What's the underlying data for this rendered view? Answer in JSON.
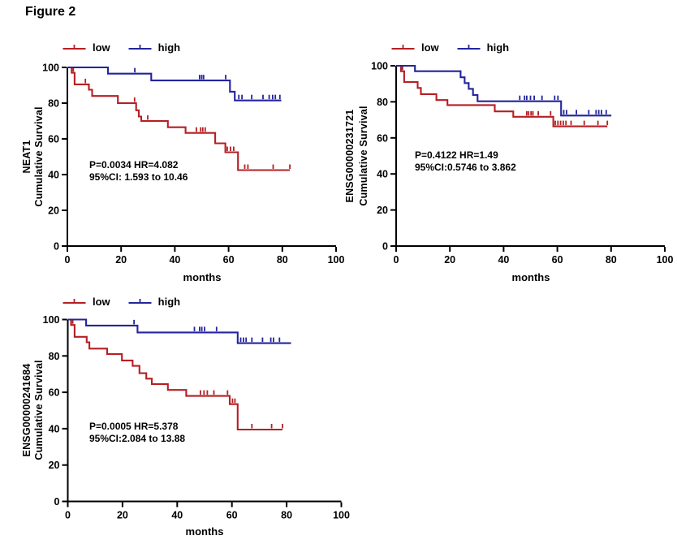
{
  "figure_title": "Figure 2",
  "colors": {
    "low": "#b51f24",
    "high": "#24249c",
    "axis": "#000000"
  },
  "panels": [
    {
      "gene": "NEAT1",
      "ylabel": "Cumulative Survival",
      "xlabel": "months",
      "legend": [
        {
          "label": "low"
        },
        {
          "label": "high"
        }
      ],
      "annotation_line1": "P=0.0034 HR=4.082",
      "annotation_line2": "95%CI: 1.593 to 10.46"
    },
    {
      "gene": "ENSG00000231721",
      "ylabel": "Cumulative Survival",
      "xlabel": "months",
      "legend": [
        {
          "label": "low"
        },
        {
          "label": "high"
        }
      ],
      "annotation_line1": "P=0.4122 HR=1.49",
      "annotation_line2": "95%CI:0.5746 to 3.862"
    },
    {
      "gene": "ENSG00000241684",
      "ylabel": "Cumulative Survival",
      "xlabel": "months",
      "legend": [
        {
          "label": "low"
        },
        {
          "label": "high"
        }
      ],
      "annotation_line1": "P=0.0005 HR=5.378",
      "annotation_line2": "95%CI:2.084 to 13.88"
    }
  ],
  "chart_data": [
    {
      "type": "line",
      "subtype": "kaplan-meier-step",
      "title": "NEAT1",
      "xlabel": "months",
      "ylabel": "Cumulative Survival",
      "x_range": [
        0,
        100
      ],
      "y_range": [
        0,
        100
      ],
      "x_ticks": [
        0,
        20,
        40,
        60,
        80,
        100
      ],
      "y_ticks": [
        0,
        20,
        40,
        60,
        80,
        100
      ],
      "series": [
        {
          "name": "low",
          "color_key": "low",
          "start": [
            0,
            100
          ],
          "steps": [
            [
              1.6,
              97
            ],
            [
              2.7,
              90.5
            ],
            [
              8,
              87.5
            ],
            [
              9.2,
              84
            ],
            [
              18.8,
              80
            ],
            [
              25.6,
              76
            ],
            [
              26.6,
              72.5
            ],
            [
              27.5,
              70
            ],
            [
              37.4,
              66.5
            ],
            [
              44,
              63.3
            ],
            [
              55,
              57.5
            ],
            [
              58.8,
              52.5
            ],
            [
              63.5,
              42.5
            ]
          ],
          "end_x": 82.8,
          "censor_x": [
            2.2,
            6.7,
            25,
            29.9,
            48,
            49.6,
            50.4,
            51.3,
            59.5,
            60.7,
            61.9,
            66,
            67.2,
            76.6,
            82.8
          ]
        },
        {
          "name": "high",
          "color_key": "high",
          "start": [
            0,
            100
          ],
          "steps": [
            [
              15.1,
              96.5
            ],
            [
              31.2,
              92.7
            ],
            [
              60.5,
              86.4
            ],
            [
              62.3,
              81.5
            ]
          ],
          "end_x": 79.6,
          "censor_x": [
            25.1,
            49.2,
            50,
            50.7,
            58.9,
            63.8,
            65,
            68.6,
            72.8,
            75.1,
            76.4,
            77.4,
            79.1
          ]
        }
      ]
    },
    {
      "type": "line",
      "subtype": "kaplan-meier-step",
      "title": "ENSG00000231721",
      "xlabel": "months",
      "ylabel": "Cumulative Survival",
      "x_range": [
        0,
        100
      ],
      "y_range": [
        0,
        100
      ],
      "x_ticks": [
        0,
        20,
        40,
        60,
        80,
        100
      ],
      "y_ticks": [
        0,
        20,
        40,
        60,
        80,
        100
      ],
      "series": [
        {
          "name": "low",
          "color_key": "low",
          "start": [
            0,
            100
          ],
          "steps": [
            [
              1.8,
              97
            ],
            [
              3,
              91
            ],
            [
              8,
              87.7
            ],
            [
              9.2,
              84.3
            ],
            [
              15,
              81
            ],
            [
              19.1,
              78.2
            ],
            [
              36.7,
              74.7
            ],
            [
              43.6,
              71.7
            ],
            [
              58.5,
              66.4
            ]
          ],
          "end_x": 78.6,
          "censor_x": [
            2.4,
            48.6,
            49.3,
            50.2,
            50.9,
            52.9,
            57.5,
            59.2,
            60.2,
            61.2,
            62.2,
            63.2,
            65.1,
            70,
            75.1,
            78.6
          ]
        },
        {
          "name": "high",
          "color_key": "high",
          "start": [
            0,
            100
          ],
          "steps": [
            [
              7,
              97
            ],
            [
              24,
              93.6
            ],
            [
              25.5,
              90.4
            ],
            [
              27,
              87.2
            ],
            [
              28.6,
              83.8
            ],
            [
              30.3,
              80.3
            ],
            [
              61.4,
              72.4
            ]
          ],
          "end_x": 80.1,
          "censor_x": [
            46,
            47.8,
            48.6,
            50,
            51.4,
            54.3,
            59,
            60.2,
            62.4,
            63.4,
            67.1,
            71.7,
            74.4,
            75.4,
            76.4,
            78.2
          ]
        }
      ]
    },
    {
      "type": "line",
      "subtype": "kaplan-meier-step",
      "title": "ENSG00000241684",
      "xlabel": "months",
      "ylabel": "Cumulative Survival",
      "x_range": [
        0,
        100
      ],
      "y_range": [
        0,
        100
      ],
      "x_ticks": [
        0,
        20,
        40,
        60,
        80,
        100
      ],
      "y_ticks": [
        0,
        20,
        40,
        60,
        80,
        100
      ],
      "series": [
        {
          "name": "low",
          "color_key": "low",
          "start": [
            0,
            100
          ],
          "steps": [
            [
              1.2,
              97
            ],
            [
              2.5,
              90.5
            ],
            [
              6.9,
              87.5
            ],
            [
              7.9,
              84
            ],
            [
              14.4,
              81
            ],
            [
              19.8,
              77.5
            ],
            [
              23.7,
              74.5
            ],
            [
              26.2,
              70.5
            ],
            [
              28.7,
              67.5
            ],
            [
              30.7,
              64.5
            ],
            [
              36.6,
              61.3
            ],
            [
              43.3,
              58
            ],
            [
              59.2,
              53.5
            ],
            [
              62.1,
              39.5
            ]
          ],
          "end_x": 78.5,
          "censor_x": [
            1.8,
            48.5,
            49.8,
            51,
            53.4,
            58.4,
            60.2,
            61.1,
            67.3,
            74.5,
            78.5
          ]
        },
        {
          "name": "high",
          "color_key": "high",
          "start": [
            0,
            100
          ],
          "steps": [
            [
              6.7,
              96.7
            ],
            [
              25.5,
              92.9
            ],
            [
              62.1,
              87
            ]
          ],
          "end_x": 81.6,
          "censor_x": [
            24.2,
            46.3,
            48.2,
            49,
            50,
            54.4,
            63.2,
            64.2,
            65.2,
            67.3,
            71.2,
            74.2,
            75.2,
            77.4
          ]
        }
      ]
    }
  ]
}
